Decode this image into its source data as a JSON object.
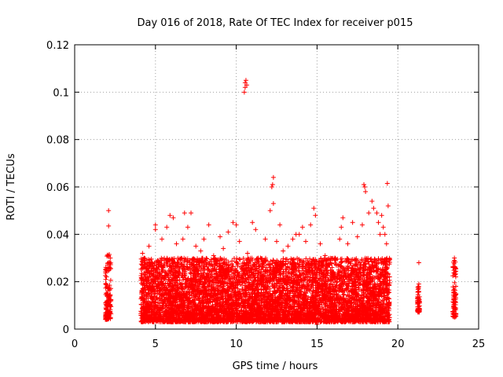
{
  "chart_data": {
    "type": "scatter",
    "title": "Day 016 of 2018, Rate Of TEC Index for receiver p015",
    "xlabel": "GPS time / hours",
    "ylabel": "ROTI / TECUs",
    "xlim": [
      0,
      25
    ],
    "ylim": [
      0,
      0.12
    ],
    "x_ticks": [
      0,
      5,
      10,
      15,
      20,
      25
    ],
    "x_tick_labels": [
      "0",
      "5",
      "10",
      "15",
      "20",
      "25"
    ],
    "y_ticks": [
      0,
      0.02,
      0.04,
      0.06,
      0.08,
      0.1,
      0.12
    ],
    "y_tick_labels": [
      "0",
      "0.02",
      "0.04",
      "0.06",
      "0.08",
      "0.1",
      "0.12"
    ],
    "grid": true,
    "marker": "+",
    "color": "#ff0000",
    "dense_segments": [
      {
        "x_start": 1.9,
        "x_end": 2.25,
        "y_low": 0.004,
        "y_high": 0.032
      },
      {
        "x_start": 4.1,
        "x_end": 19.5,
        "y_low": 0.003,
        "y_high": 0.03
      },
      {
        "x_start": 21.2,
        "x_end": 21.35,
        "y_low": 0.007,
        "y_high": 0.018
      },
      {
        "x_start": 23.4,
        "x_end": 23.6,
        "y_low": 0.005,
        "y_high": 0.029
      }
    ],
    "points": [
      [
        2.1,
        0.05
      ],
      [
        2.1,
        0.0435
      ],
      [
        2.1,
        0.031
      ],
      [
        4.2,
        0.032
      ],
      [
        4.6,
        0.035
      ],
      [
        5.0,
        0.042
      ],
      [
        5.0,
        0.044
      ],
      [
        5.4,
        0.038
      ],
      [
        5.7,
        0.043
      ],
      [
        5.9,
        0.048
      ],
      [
        6.1,
        0.047
      ],
      [
        6.3,
        0.036
      ],
      [
        6.7,
        0.038
      ],
      [
        6.8,
        0.049
      ],
      [
        7.0,
        0.043
      ],
      [
        7.2,
        0.049
      ],
      [
        7.5,
        0.035
      ],
      [
        7.8,
        0.033
      ],
      [
        8.0,
        0.038
      ],
      [
        8.3,
        0.044
      ],
      [
        8.6,
        0.031
      ],
      [
        9.0,
        0.039
      ],
      [
        9.2,
        0.034
      ],
      [
        9.5,
        0.041
      ],
      [
        9.8,
        0.045
      ],
      [
        10.0,
        0.044
      ],
      [
        10.2,
        0.037
      ],
      [
        10.5,
        0.1
      ],
      [
        10.55,
        0.102
      ],
      [
        10.55,
        0.104
      ],
      [
        10.6,
        0.105
      ],
      [
        10.65,
        0.103
      ],
      [
        10.7,
        0.032
      ],
      [
        11.0,
        0.045
      ],
      [
        11.2,
        0.042
      ],
      [
        11.5,
        0.03
      ],
      [
        11.8,
        0.038
      ],
      [
        12.1,
        0.05
      ],
      [
        12.2,
        0.06
      ],
      [
        12.25,
        0.061
      ],
      [
        12.3,
        0.064
      ],
      [
        12.3,
        0.053
      ],
      [
        12.5,
        0.037
      ],
      [
        12.7,
        0.044
      ],
      [
        12.9,
        0.033
      ],
      [
        13.2,
        0.035
      ],
      [
        13.5,
        0.038
      ],
      [
        13.7,
        0.04
      ],
      [
        13.9,
        0.04
      ],
      [
        14.1,
        0.043
      ],
      [
        14.3,
        0.037
      ],
      [
        14.6,
        0.044
      ],
      [
        14.8,
        0.051
      ],
      [
        14.9,
        0.048
      ],
      [
        15.0,
        0.002
      ],
      [
        15.2,
        0.036
      ],
      [
        15.5,
        0.031
      ],
      [
        15.8,
        0.029
      ],
      [
        16.1,
        0.03
      ],
      [
        16.4,
        0.038
      ],
      [
        16.5,
        0.043
      ],
      [
        16.6,
        0.047
      ],
      [
        16.9,
        0.036
      ],
      [
        17.2,
        0.045
      ],
      [
        17.5,
        0.039
      ],
      [
        17.8,
        0.044
      ],
      [
        17.9,
        0.061
      ],
      [
        17.95,
        0.06
      ],
      [
        18.0,
        0.058
      ],
      [
        18.2,
        0.049
      ],
      [
        18.4,
        0.054
      ],
      [
        18.5,
        0.051
      ],
      [
        18.7,
        0.049
      ],
      [
        18.8,
        0.045
      ],
      [
        18.9,
        0.04
      ],
      [
        19.0,
        0.048
      ],
      [
        19.1,
        0.043
      ],
      [
        19.2,
        0.04
      ],
      [
        19.3,
        0.036
      ],
      [
        19.35,
        0.0615
      ],
      [
        19.4,
        0.052
      ],
      [
        21.3,
        0.028
      ],
      [
        21.3,
        0.019
      ],
      [
        23.5,
        0.03
      ],
      [
        23.5,
        0.029
      ]
    ]
  }
}
